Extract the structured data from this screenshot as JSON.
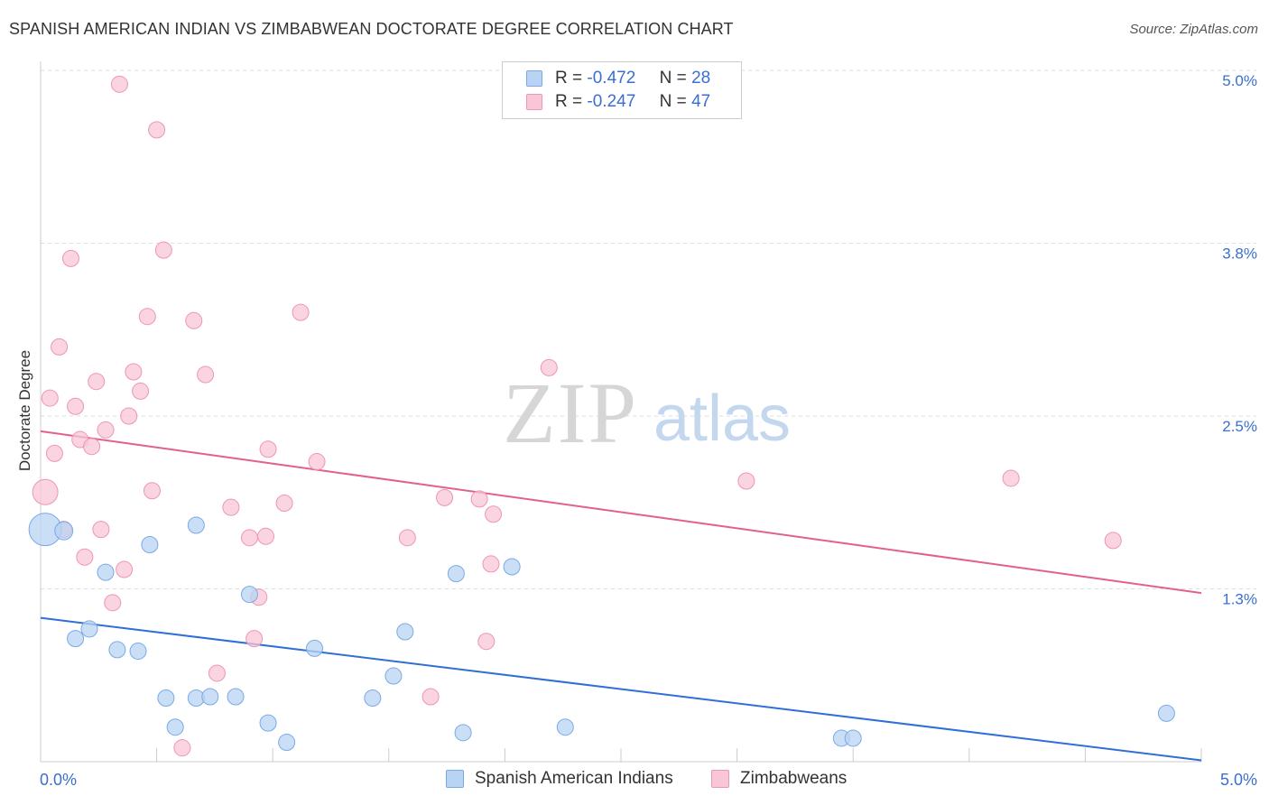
{
  "title": "SPANISH AMERICAN INDIAN VS ZIMBABWEAN DOCTORATE DEGREE CORRELATION CHART",
  "source": "Source: ZipAtlas.com",
  "watermark": {
    "zip": "ZIP",
    "atlas": "atlas"
  },
  "legend": {
    "r_label": "R =",
    "n_label": "N =",
    "series": [
      {
        "r": "-0.472",
        "n": "28"
      },
      {
        "r": "-0.247",
        "n": "47"
      }
    ]
  },
  "colors": {
    "blue_fill": "#b8d3f3",
    "blue_stroke": "#7aaae6",
    "blue_line": "#2f6fd6",
    "pink_fill": "#f8c6d6",
    "pink_stroke": "#ee96b2",
    "pink_line": "#e2618c",
    "tick_text": "#3a6fd0",
    "grid": "#dddddd"
  },
  "chart_data": {
    "type": "scatter",
    "title": "SPANISH AMERICAN INDIAN VS ZIMBABWEAN DOCTORATE DEGREE CORRELATION CHART",
    "xlabel": "",
    "ylabel": "Doctorate Degree",
    "xlim": [
      0,
      5.0
    ],
    "ylim": [
      0,
      5.0
    ],
    "x_tick_labels": [
      "0.0%",
      "5.0%"
    ],
    "y_ticks": [
      1.25,
      2.5,
      3.75,
      5.0
    ],
    "y_tick_labels": [
      "1.3%",
      "2.5%",
      "3.8%",
      "5.0%"
    ],
    "series": [
      {
        "name": "Spanish American Indians",
        "color": "#7aaae6",
        "points": [
          [
            0.02,
            1.68,
            18
          ],
          [
            0.1,
            1.67,
            10
          ],
          [
            0.15,
            0.89,
            9
          ],
          [
            0.21,
            0.96,
            9
          ],
          [
            0.28,
            1.37,
            9
          ],
          [
            0.33,
            0.81,
            9
          ],
          [
            0.42,
            0.8,
            9
          ],
          [
            0.47,
            1.57,
            9
          ],
          [
            0.54,
            0.46,
            9
          ],
          [
            0.58,
            0.25,
            9
          ],
          [
            0.67,
            0.46,
            9
          ],
          [
            0.67,
            1.71,
            9
          ],
          [
            0.73,
            0.47,
            9
          ],
          [
            0.84,
            0.47,
            9
          ],
          [
            0.9,
            1.21,
            9
          ],
          [
            0.98,
            0.28,
            9
          ],
          [
            1.06,
            0.14,
            9
          ],
          [
            1.18,
            0.82,
            9
          ],
          [
            1.43,
            0.46,
            9
          ],
          [
            1.52,
            0.62,
            9
          ],
          [
            1.57,
            0.94,
            9
          ],
          [
            1.79,
            1.36,
            9
          ],
          [
            1.82,
            0.21,
            9
          ],
          [
            2.03,
            1.41,
            9
          ],
          [
            2.26,
            0.25,
            9
          ],
          [
            3.45,
            0.17,
            9
          ],
          [
            3.5,
            0.17,
            9
          ],
          [
            4.85,
            0.35,
            9
          ]
        ]
      },
      {
        "name": "Zimbabweans",
        "color": "#ee96b2",
        "points": [
          [
            0.02,
            1.95,
            14
          ],
          [
            0.04,
            2.63,
            9
          ],
          [
            0.06,
            2.23,
            9
          ],
          [
            0.08,
            3.0,
            9
          ],
          [
            0.1,
            1.68,
            9
          ],
          [
            0.13,
            3.64,
            9
          ],
          [
            0.15,
            2.57,
            9
          ],
          [
            0.17,
            2.33,
            9
          ],
          [
            0.19,
            1.48,
            9
          ],
          [
            0.22,
            2.28,
            9
          ],
          [
            0.24,
            2.75,
            9
          ],
          [
            0.26,
            1.68,
            9
          ],
          [
            0.28,
            2.4,
            9
          ],
          [
            0.31,
            1.15,
            9
          ],
          [
            0.34,
            4.9,
            9
          ],
          [
            0.36,
            1.39,
            9
          ],
          [
            0.38,
            2.5,
            9
          ],
          [
            0.4,
            2.82,
            9
          ],
          [
            0.43,
            2.68,
            9
          ],
          [
            0.46,
            3.22,
            9
          ],
          [
            0.48,
            1.96,
            9
          ],
          [
            0.5,
            4.57,
            9
          ],
          [
            0.53,
            3.7,
            9
          ],
          [
            0.61,
            0.1,
            9
          ],
          [
            0.66,
            3.19,
            9
          ],
          [
            0.71,
            2.8,
            9
          ],
          [
            0.76,
            0.64,
            9
          ],
          [
            0.82,
            1.84,
            9
          ],
          [
            0.9,
            1.62,
            9
          ],
          [
            0.92,
            0.89,
            9
          ],
          [
            0.94,
            1.19,
            9
          ],
          [
            0.97,
            1.63,
            9
          ],
          [
            0.98,
            2.26,
            9
          ],
          [
            1.05,
            1.87,
            9
          ],
          [
            1.12,
            3.25,
            9
          ],
          [
            1.19,
            2.17,
            9
          ],
          [
            1.58,
            1.62,
            9
          ],
          [
            1.68,
            0.47,
            9
          ],
          [
            1.74,
            1.91,
            9
          ],
          [
            1.89,
            1.9,
            9
          ],
          [
            1.92,
            0.87,
            9
          ],
          [
            1.94,
            1.43,
            9
          ],
          [
            1.95,
            1.79,
            9
          ],
          [
            2.19,
            2.85,
            9
          ],
          [
            3.04,
            2.03,
            9
          ],
          [
            4.18,
            2.05,
            9
          ],
          [
            4.62,
            1.6,
            9
          ]
        ]
      }
    ],
    "trendlines": [
      {
        "series": "Spanish American Indians",
        "x": [
          0,
          5.0
        ],
        "y": [
          1.04,
          0.01
        ]
      },
      {
        "series": "Zimbabweans",
        "x": [
          0,
          5.0
        ],
        "y": [
          2.39,
          1.22
        ]
      }
    ]
  }
}
